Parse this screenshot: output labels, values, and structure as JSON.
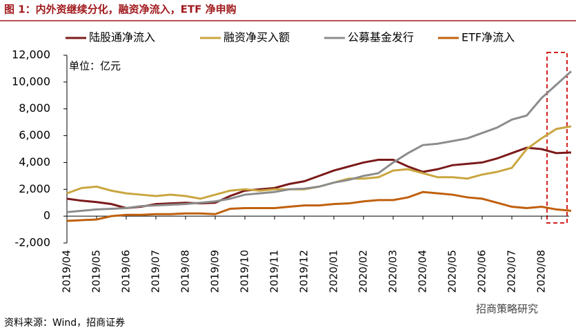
{
  "title": "图 1：内外资继续分化，融资净流入，ETF 净申购",
  "source": "资料来源：Wind，招商证券",
  "watermark": "招商策略研究",
  "chart_data": {
    "type": "line",
    "annotation": "单位：亿元",
    "categories": [
      "2019/04",
      null,
      "2019/05",
      null,
      "2019/06",
      null,
      "2019/07",
      null,
      "2019/08",
      null,
      "2019/09",
      null,
      "2019/10",
      null,
      "2019/11",
      null,
      "2019/12",
      null,
      "2020/01",
      null,
      "2020/02",
      null,
      "2020/03",
      null,
      "2020/04",
      null,
      "2020/05",
      null,
      "2020/06",
      null,
      "2020/07",
      null,
      "2020/08",
      null,
      null
    ],
    "ylim": [
      -2000,
      12000
    ],
    "yticks": [
      {
        "value": -2000,
        "label": "-2,000"
      },
      0,
      {
        "value": 2000,
        "label": "2,000"
      },
      {
        "value": 4000,
        "label": "4,000"
      },
      {
        "value": 6000,
        "label": "6,000"
      },
      {
        "value": 8000,
        "label": "8,000"
      },
      {
        "value": 10000,
        "label": "10,000"
      },
      {
        "value": 12000,
        "label": "12,000"
      }
    ],
    "series": [
      {
        "name": "陆股通净流入",
        "color": "#7b1a1a",
        "values": [
          1300,
          1150,
          1050,
          900,
          600,
          700,
          900,
          950,
          1000,
          950,
          1000,
          1500,
          1900,
          2000,
          2100,
          2400,
          2600,
          3000,
          3400,
          3700,
          4000,
          4200,
          4200,
          3700,
          3300,
          3500,
          3800,
          3900,
          4000,
          4300,
          4700,
          5100,
          5000,
          4700,
          4750
        ]
      },
      {
        "name": "融资净买入额",
        "color": "#c9a640",
        "values": [
          1700,
          2100,
          2200,
          1900,
          1700,
          1600,
          1500,
          1600,
          1500,
          1300,
          1600,
          1900,
          2000,
          1900,
          2000,
          2000,
          2000,
          2200,
          2500,
          2800,
          2800,
          2900,
          3400,
          3500,
          3200,
          2900,
          2900,
          2800,
          3100,
          3300,
          3600,
          5000,
          5800,
          6500,
          6700
        ]
      },
      {
        "name": "公募基金发行",
        "color": "#8c8c8c",
        "values": [
          300,
          400,
          500,
          550,
          600,
          750,
          800,
          850,
          900,
          1000,
          1100,
          1300,
          1600,
          1700,
          1800,
          2000,
          2050,
          2200,
          2500,
          2700,
          3000,
          3200,
          4000,
          4700,
          5300,
          5400,
          5600,
          5800,
          6200,
          6600,
          7200,
          7500,
          8800,
          9800,
          10800
        ]
      },
      {
        "name": "ETF净流入",
        "color": "#c0600e",
        "values": [
          -350,
          -300,
          -250,
          0,
          100,
          100,
          150,
          150,
          200,
          200,
          150,
          550,
          600,
          600,
          600,
          700,
          800,
          800,
          900,
          950,
          1100,
          1200,
          1200,
          1400,
          1800,
          1700,
          1600,
          1400,
          1300,
          1000,
          700,
          600,
          700,
          500,
          400
        ]
      }
    ]
  }
}
